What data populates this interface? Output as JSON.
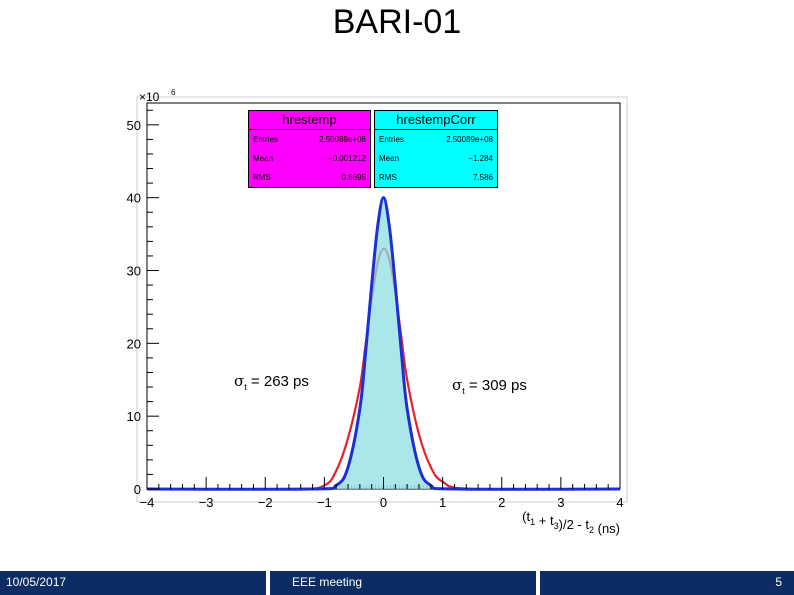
{
  "slide": {
    "title": "BARI-01",
    "footer_date": "10/05/2017",
    "footer_center": "EEE meeting",
    "footer_page": "5"
  },
  "annotations": {
    "sigma_left_symbol": "σ",
    "sigma_left_sub": "t",
    "sigma_left_value": " = 263 ps",
    "sigma_right_symbol": "σ",
    "sigma_right_sub": "t",
    "sigma_right_value": " = 309 ps"
  },
  "stats_boxes": [
    {
      "name": "hrestemp",
      "color": "#ff00ff",
      "rows": [
        {
          "label": "Entries",
          "value": "2.50089e+08"
        },
        {
          "label": "Mean",
          "value": "−0.001212"
        },
        {
          "label": "RMS",
          "value": "0.6695"
        }
      ]
    },
    {
      "name": "hrestempCorr",
      "color": "#00ffff",
      "rows": [
        {
          "label": "Entries",
          "value": "2.50089e+08"
        },
        {
          "label": "Mean",
          "value": "−1.284"
        },
        {
          "label": "RMS",
          "value": "7.586"
        }
      ]
    }
  ],
  "chart_data": {
    "type": "line",
    "xlabel": "(t1 + t3)/2 - t2 (ns)",
    "ylabel": "",
    "y_multiplier": "×10",
    "y_multiplier_exp": "6",
    "xlim": [
      -4,
      4
    ],
    "ylim": [
      0,
      53
    ],
    "x_ticks": [
      -4,
      -3,
      -2,
      -1,
      0,
      1,
      2,
      3,
      4
    ],
    "y_ticks": [
      0,
      10,
      20,
      30,
      40,
      50
    ],
    "series": [
      {
        "name": "hrestemp",
        "color": "#e8202a",
        "x": [
          -4,
          -1.5,
          -1.0,
          -0.8,
          -0.6,
          -0.4,
          -0.3,
          -0.2,
          -0.1,
          0,
          0.1,
          0.2,
          0.3,
          0.4,
          0.6,
          0.8,
          1.0,
          1.5,
          4
        ],
        "y": [
          0,
          0,
          0.5,
          2.5,
          7,
          14,
          20,
          26,
          31,
          33,
          31.5,
          27,
          21,
          15,
          7.5,
          3,
          1,
          0,
          0
        ]
      },
      {
        "name": "hrestempCorr",
        "color": "#1f2fd6",
        "fill": "#8fdde0",
        "x": [
          -4,
          -1.2,
          -0.8,
          -0.6,
          -0.4,
          -0.3,
          -0.2,
          -0.1,
          0,
          0.1,
          0.2,
          0.3,
          0.4,
          0.6,
          0.8,
          1.2,
          4
        ],
        "y": [
          0,
          0,
          0.5,
          3,
          11,
          19,
          28,
          36,
          40,
          36,
          28,
          19,
          11,
          3,
          0.5,
          0,
          0
        ]
      }
    ]
  }
}
